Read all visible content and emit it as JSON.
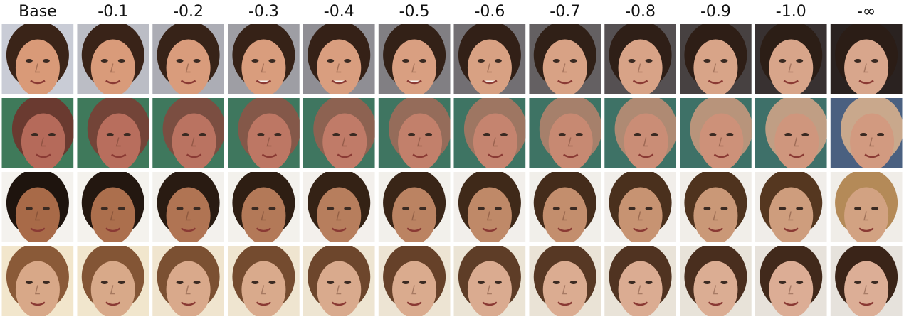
{
  "figure": {
    "columns": [
      "Base",
      "-0.1",
      "-0.2",
      "-0.3",
      "-0.4",
      "-0.5",
      "-0.6",
      "-0.7",
      "-0.8",
      "-0.9",
      "-1.0",
      "-∞"
    ]
  }
}
